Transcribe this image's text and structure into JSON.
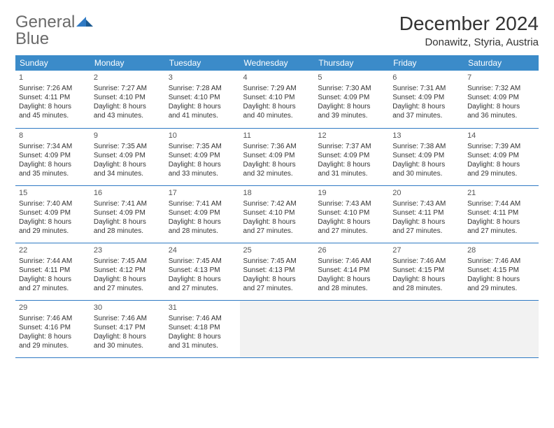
{
  "brand": {
    "word1": "General",
    "word2": "Blue"
  },
  "header": {
    "title": "December 2024",
    "location": "Donawitz, Styria, Austria"
  },
  "colors": {
    "accent": "#3b8bc9",
    "rule": "#2f7ac4",
    "empty": "#f2f2f2",
    "text": "#333333",
    "logo_gray": "#6a6a6a"
  },
  "weekdays": [
    "Sunday",
    "Monday",
    "Tuesday",
    "Wednesday",
    "Thursday",
    "Friday",
    "Saturday"
  ],
  "weeks": [
    [
      {
        "n": "1",
        "sr": "Sunrise: 7:26 AM",
        "ss": "Sunset: 4:11 PM",
        "d1": "Daylight: 8 hours",
        "d2": "and 45 minutes."
      },
      {
        "n": "2",
        "sr": "Sunrise: 7:27 AM",
        "ss": "Sunset: 4:10 PM",
        "d1": "Daylight: 8 hours",
        "d2": "and 43 minutes."
      },
      {
        "n": "3",
        "sr": "Sunrise: 7:28 AM",
        "ss": "Sunset: 4:10 PM",
        "d1": "Daylight: 8 hours",
        "d2": "and 41 minutes."
      },
      {
        "n": "4",
        "sr": "Sunrise: 7:29 AM",
        "ss": "Sunset: 4:10 PM",
        "d1": "Daylight: 8 hours",
        "d2": "and 40 minutes."
      },
      {
        "n": "5",
        "sr": "Sunrise: 7:30 AM",
        "ss": "Sunset: 4:09 PM",
        "d1": "Daylight: 8 hours",
        "d2": "and 39 minutes."
      },
      {
        "n": "6",
        "sr": "Sunrise: 7:31 AM",
        "ss": "Sunset: 4:09 PM",
        "d1": "Daylight: 8 hours",
        "d2": "and 37 minutes."
      },
      {
        "n": "7",
        "sr": "Sunrise: 7:32 AM",
        "ss": "Sunset: 4:09 PM",
        "d1": "Daylight: 8 hours",
        "d2": "and 36 minutes."
      }
    ],
    [
      {
        "n": "8",
        "sr": "Sunrise: 7:34 AM",
        "ss": "Sunset: 4:09 PM",
        "d1": "Daylight: 8 hours",
        "d2": "and 35 minutes."
      },
      {
        "n": "9",
        "sr": "Sunrise: 7:35 AM",
        "ss": "Sunset: 4:09 PM",
        "d1": "Daylight: 8 hours",
        "d2": "and 34 minutes."
      },
      {
        "n": "10",
        "sr": "Sunrise: 7:35 AM",
        "ss": "Sunset: 4:09 PM",
        "d1": "Daylight: 8 hours",
        "d2": "and 33 minutes."
      },
      {
        "n": "11",
        "sr": "Sunrise: 7:36 AM",
        "ss": "Sunset: 4:09 PM",
        "d1": "Daylight: 8 hours",
        "d2": "and 32 minutes."
      },
      {
        "n": "12",
        "sr": "Sunrise: 7:37 AM",
        "ss": "Sunset: 4:09 PM",
        "d1": "Daylight: 8 hours",
        "d2": "and 31 minutes."
      },
      {
        "n": "13",
        "sr": "Sunrise: 7:38 AM",
        "ss": "Sunset: 4:09 PM",
        "d1": "Daylight: 8 hours",
        "d2": "and 30 minutes."
      },
      {
        "n": "14",
        "sr": "Sunrise: 7:39 AM",
        "ss": "Sunset: 4:09 PM",
        "d1": "Daylight: 8 hours",
        "d2": "and 29 minutes."
      }
    ],
    [
      {
        "n": "15",
        "sr": "Sunrise: 7:40 AM",
        "ss": "Sunset: 4:09 PM",
        "d1": "Daylight: 8 hours",
        "d2": "and 29 minutes."
      },
      {
        "n": "16",
        "sr": "Sunrise: 7:41 AM",
        "ss": "Sunset: 4:09 PM",
        "d1": "Daylight: 8 hours",
        "d2": "and 28 minutes."
      },
      {
        "n": "17",
        "sr": "Sunrise: 7:41 AM",
        "ss": "Sunset: 4:09 PM",
        "d1": "Daylight: 8 hours",
        "d2": "and 28 minutes."
      },
      {
        "n": "18",
        "sr": "Sunrise: 7:42 AM",
        "ss": "Sunset: 4:10 PM",
        "d1": "Daylight: 8 hours",
        "d2": "and 27 minutes."
      },
      {
        "n": "19",
        "sr": "Sunrise: 7:43 AM",
        "ss": "Sunset: 4:10 PM",
        "d1": "Daylight: 8 hours",
        "d2": "and 27 minutes."
      },
      {
        "n": "20",
        "sr": "Sunrise: 7:43 AM",
        "ss": "Sunset: 4:11 PM",
        "d1": "Daylight: 8 hours",
        "d2": "and 27 minutes."
      },
      {
        "n": "21",
        "sr": "Sunrise: 7:44 AM",
        "ss": "Sunset: 4:11 PM",
        "d1": "Daylight: 8 hours",
        "d2": "and 27 minutes."
      }
    ],
    [
      {
        "n": "22",
        "sr": "Sunrise: 7:44 AM",
        "ss": "Sunset: 4:11 PM",
        "d1": "Daylight: 8 hours",
        "d2": "and 27 minutes."
      },
      {
        "n": "23",
        "sr": "Sunrise: 7:45 AM",
        "ss": "Sunset: 4:12 PM",
        "d1": "Daylight: 8 hours",
        "d2": "and 27 minutes."
      },
      {
        "n": "24",
        "sr": "Sunrise: 7:45 AM",
        "ss": "Sunset: 4:13 PM",
        "d1": "Daylight: 8 hours",
        "d2": "and 27 minutes."
      },
      {
        "n": "25",
        "sr": "Sunrise: 7:45 AM",
        "ss": "Sunset: 4:13 PM",
        "d1": "Daylight: 8 hours",
        "d2": "and 27 minutes."
      },
      {
        "n": "26",
        "sr": "Sunrise: 7:46 AM",
        "ss": "Sunset: 4:14 PM",
        "d1": "Daylight: 8 hours",
        "d2": "and 28 minutes."
      },
      {
        "n": "27",
        "sr": "Sunrise: 7:46 AM",
        "ss": "Sunset: 4:15 PM",
        "d1": "Daylight: 8 hours",
        "d2": "and 28 minutes."
      },
      {
        "n": "28",
        "sr": "Sunrise: 7:46 AM",
        "ss": "Sunset: 4:15 PM",
        "d1": "Daylight: 8 hours",
        "d2": "and 29 minutes."
      }
    ],
    [
      {
        "n": "29",
        "sr": "Sunrise: 7:46 AM",
        "ss": "Sunset: 4:16 PM",
        "d1": "Daylight: 8 hours",
        "d2": "and 29 minutes."
      },
      {
        "n": "30",
        "sr": "Sunrise: 7:46 AM",
        "ss": "Sunset: 4:17 PM",
        "d1": "Daylight: 8 hours",
        "d2": "and 30 minutes."
      },
      {
        "n": "31",
        "sr": "Sunrise: 7:46 AM",
        "ss": "Sunset: 4:18 PM",
        "d1": "Daylight: 8 hours",
        "d2": "and 31 minutes."
      },
      null,
      null,
      null,
      null
    ]
  ]
}
